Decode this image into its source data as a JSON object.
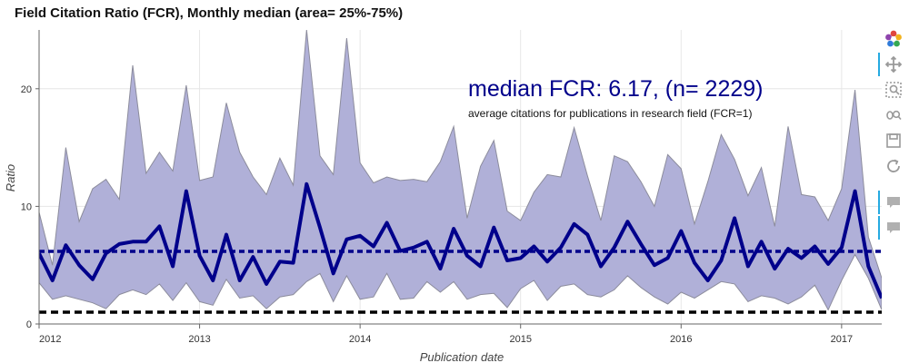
{
  "chart_data": {
    "type": "area",
    "title": "Field Citation Ratio (FCR), Monthly median (area= 25%-75%)",
    "xlabel": "Publication date",
    "ylabel": "Ratio",
    "x_ticks": [
      "2012",
      "2013",
      "2014",
      "2015",
      "2016",
      "2017"
    ],
    "y_ticks": [
      0,
      10,
      20
    ],
    "xlim": [
      "2012-01",
      "2017-04"
    ],
    "ylim": [
      0,
      25
    ],
    "annotation": {
      "main": "median FCR: 6.17, (n= 2229)",
      "sub": "average citations for publications in research field (FCR=1)"
    },
    "reference_lines": [
      {
        "y": 6.17,
        "style": "dotted",
        "color": "#00008b"
      },
      {
        "y": 1,
        "style": "dashed",
        "color": "#000000"
      }
    ],
    "x": [
      "2012-01",
      "2012-02",
      "2012-03",
      "2012-04",
      "2012-05",
      "2012-06",
      "2012-07",
      "2012-08",
      "2012-09",
      "2012-10",
      "2012-11",
      "2012-12",
      "2013-01",
      "2013-02",
      "2013-03",
      "2013-04",
      "2013-05",
      "2013-06",
      "2013-07",
      "2013-08",
      "2013-09",
      "2013-10",
      "2013-11",
      "2013-12",
      "2014-01",
      "2014-02",
      "2014-03",
      "2014-04",
      "2014-05",
      "2014-06",
      "2014-07",
      "2014-08",
      "2014-09",
      "2014-10",
      "2014-11",
      "2014-12",
      "2015-01",
      "2015-02",
      "2015-03",
      "2015-04",
      "2015-05",
      "2015-06",
      "2015-07",
      "2015-08",
      "2015-09",
      "2015-10",
      "2015-11",
      "2015-12",
      "2016-01",
      "2016-02",
      "2016-03",
      "2016-04",
      "2016-05",
      "2016-06",
      "2016-07",
      "2016-08",
      "2016-09",
      "2016-10",
      "2016-11",
      "2016-12",
      "2017-01",
      "2017-02",
      "2017-03",
      "2017-04"
    ],
    "series": [
      {
        "role": "median",
        "color": "#00008b",
        "values": [
          6.0,
          3.7,
          6.7,
          5.0,
          3.8,
          6.0,
          6.8,
          7.0,
          7.0,
          8.3,
          4.9,
          11.3,
          5.8,
          3.7,
          7.6,
          3.7,
          5.7,
          3.4,
          5.3,
          5.2,
          11.9,
          8.2,
          4.3,
          7.2,
          7.5,
          6.6,
          8.6,
          6.2,
          6.5,
          7.0,
          4.7,
          8.1,
          5.8,
          4.9,
          8.2,
          5.4,
          5.6,
          6.6,
          5.3,
          6.5,
          8.5,
          7.6,
          4.9,
          6.5,
          8.7,
          6.8,
          5.0,
          5.6,
          7.9,
          5.2,
          3.7,
          5.4,
          9.0,
          4.9,
          7.0,
          4.7,
          6.4,
          5.6,
          6.6,
          5.1,
          6.5,
          11.3,
          4.9,
          2.2
        ]
      },
      {
        "role": "q75",
        "values": [
          9.5,
          5.0,
          15.0,
          8.7,
          11.5,
          12.3,
          10.6,
          22.0,
          12.8,
          14.6,
          13.0,
          20.3,
          12.2,
          12.5,
          18.8,
          14.6,
          12.5,
          11.0,
          14.1,
          11.8,
          25.0,
          14.3,
          12.7,
          24.3,
          13.7,
          12.0,
          12.5,
          12.2,
          12.3,
          12.1,
          13.8,
          16.8,
          9.0,
          13.4,
          15.6,
          9.6,
          8.8,
          11.2,
          12.7,
          12.5,
          16.7,
          12.6,
          8.8,
          14.3,
          13.8,
          12.1,
          10.0,
          14.4,
          13.2,
          8.5,
          12.1,
          16.1,
          14.0,
          10.9,
          13.3,
          8.3,
          16.8,
          11.0,
          10.8,
          8.8,
          11.5,
          19.9,
          7.4,
          3.9
        ]
      },
      {
        "role": "q25",
        "values": [
          3.5,
          2.1,
          2.4,
          2.1,
          1.8,
          1.3,
          2.5,
          2.9,
          2.5,
          3.4,
          2.0,
          3.5,
          1.9,
          1.6,
          3.8,
          2.2,
          2.4,
          1.3,
          2.3,
          2.5,
          3.6,
          4.3,
          1.9,
          4.1,
          2.1,
          2.3,
          4.3,
          2.1,
          2.2,
          3.6,
          2.7,
          3.6,
          2.1,
          2.5,
          2.6,
          1.4,
          3.0,
          3.7,
          2.0,
          3.2,
          3.4,
          2.5,
          2.3,
          2.9,
          4.1,
          3.1,
          2.3,
          1.7,
          2.7,
          2.2,
          2.9,
          3.6,
          3.4,
          1.9,
          2.4,
          2.2,
          1.7,
          2.3,
          3.3,
          1.2,
          3.7,
          5.9,
          3.9,
          1.2
        ]
      }
    ],
    "area_fill": "#b0b0d8",
    "area_stroke": "#8c8c9c",
    "grid": true,
    "legend": "none"
  },
  "toolbar": {
    "items": [
      {
        "name": "bokeh-logo-icon"
      },
      {
        "name": "pan-icon"
      },
      {
        "name": "box-zoom-icon"
      },
      {
        "name": "wheel-zoom-icon"
      },
      {
        "name": "save-icon"
      },
      {
        "name": "reset-icon"
      },
      {
        "name": "hover-tooltip-icon"
      },
      {
        "name": "hover-tooltip-icon-2"
      }
    ]
  }
}
